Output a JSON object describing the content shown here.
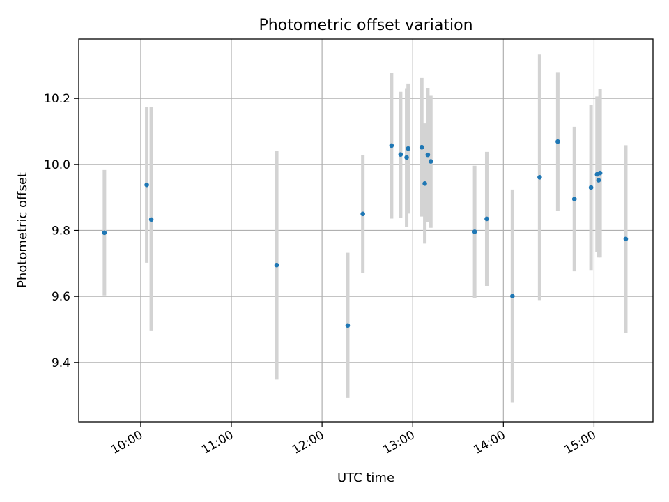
{
  "chart_data": {
    "type": "scatter",
    "title": "Photometric offset variation",
    "xlabel": "UTC time",
    "ylabel": "Photometric offset",
    "xlim": [
      "09:19",
      "15:39"
    ],
    "ylim": [
      9.22,
      10.38
    ],
    "grid": true,
    "x_ticks": [
      "10:00",
      "11:00",
      "12:00",
      "13:00",
      "14:00",
      "15:00"
    ],
    "y_ticks": [
      9.4,
      9.6,
      9.8,
      10.0,
      10.2
    ],
    "colors": {
      "point": "#1f77b4",
      "error_bar": "#d3d3d3",
      "grid": "#b0b0b0"
    },
    "points": [
      {
        "x": "09:36",
        "y": 9.793,
        "lo": 9.603,
        "hi": 9.983
      },
      {
        "x": "10:04",
        "y": 9.938,
        "lo": 9.702,
        "hi": 10.174
      },
      {
        "x": "10:07",
        "y": 9.833,
        "lo": 9.495,
        "hi": 10.174
      },
      {
        "x": "11:30",
        "y": 9.695,
        "lo": 9.348,
        "hi": 10.042
      },
      {
        "x": "12:17",
        "y": 9.512,
        "lo": 9.292,
        "hi": 9.732
      },
      {
        "x": "12:27",
        "y": 9.85,
        "lo": 9.672,
        "hi": 10.028
      },
      {
        "x": "12:46",
        "y": 10.057,
        "lo": 9.836,
        "hi": 10.278
      },
      {
        "x": "12:52",
        "y": 10.03,
        "lo": 9.838,
        "hi": 10.22
      },
      {
        "x": "12:56",
        "y": 10.021,
        "lo": 9.811,
        "hi": 10.231
      },
      {
        "x": "12:57",
        "y": 10.048,
        "lo": 9.851,
        "hi": 10.245
      },
      {
        "x": "13:06",
        "y": 10.052,
        "lo": 9.842,
        "hi": 10.262
      },
      {
        "x": "13:08",
        "y": 9.942,
        "lo": 9.76,
        "hi": 10.124
      },
      {
        "x": "13:10",
        "y": 10.029,
        "lo": 9.826,
        "hi": 10.232
      },
      {
        "x": "13:12",
        "y": 10.009,
        "lo": 9.808,
        "hi": 10.21
      },
      {
        "x": "13:41",
        "y": 9.796,
        "lo": 9.596,
        "hi": 9.996
      },
      {
        "x": "13:49",
        "y": 9.835,
        "lo": 9.632,
        "hi": 10.038
      },
      {
        "x": "14:06",
        "y": 9.601,
        "lo": 9.278,
        "hi": 9.924
      },
      {
        "x": "14:24",
        "y": 9.961,
        "lo": 9.589,
        "hi": 10.333
      },
      {
        "x": "14:36",
        "y": 10.069,
        "lo": 9.858,
        "hi": 10.28
      },
      {
        "x": "14:47",
        "y": 9.895,
        "lo": 9.676,
        "hi": 10.114
      },
      {
        "x": "14:58",
        "y": 9.93,
        "lo": 9.68,
        "hi": 10.18
      },
      {
        "x": "15:02",
        "y": 9.97,
        "lo": 9.734,
        "hi": 10.206
      },
      {
        "x": "15:03",
        "y": 9.952,
        "lo": 9.718,
        "hi": 10.186
      },
      {
        "x": "15:04",
        "y": 9.974,
        "lo": 9.718,
        "hi": 10.23
      },
      {
        "x": "15:21",
        "y": 9.774,
        "lo": 9.49,
        "hi": 10.058
      }
    ]
  }
}
